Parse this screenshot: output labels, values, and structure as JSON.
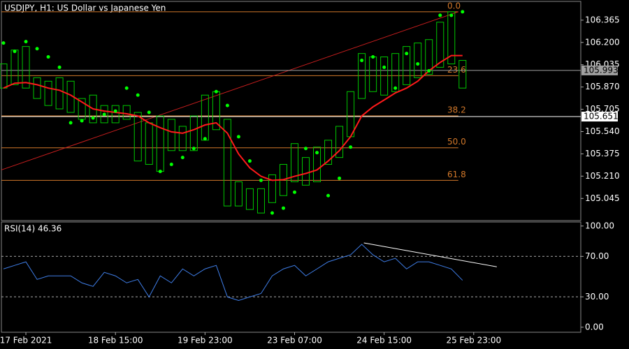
{
  "chart_data": [
    {
      "type": "ohlc",
      "title": "USDJPY, H1:  US Dollar vs Japanese Yen",
      "x": [
        -8,
        -4,
        0,
        4,
        8,
        12,
        16,
        20,
        24,
        28,
        32,
        36,
        40,
        44,
        48,
        52,
        56,
        60,
        64,
        68,
        72,
        76,
        80,
        84,
        88,
        92,
        96,
        100,
        104,
        108,
        112,
        116,
        120,
        124,
        128,
        132,
        136,
        140,
        144,
        148,
        152,
        156
      ],
      "high": [
        106.041,
        106.144,
        106.17,
        105.939,
        105.913,
        105.939,
        105.913,
        105.785,
        105.81,
        105.733,
        105.733,
        105.733,
        105.682,
        105.605,
        105.656,
        105.631,
        105.579,
        105.656,
        105.81,
        105.836,
        105.631,
        105.168,
        105.117,
        105.117,
        105.22,
        105.297,
        105.451,
        105.348,
        105.425,
        105.476,
        105.579,
        105.836,
        106.118,
        106.093,
        106.093,
        106.118,
        106.17,
        106.196,
        106.221,
        106.35,
        106.427,
        106.067
      ],
      "low": [
        105.862,
        105.887,
        105.862,
        105.785,
        105.733,
        105.708,
        105.682,
        105.631,
        105.605,
        105.605,
        105.605,
        105.631,
        105.322,
        105.297,
        105.245,
        105.399,
        105.399,
        105.399,
        105.476,
        105.554,
        104.989,
        104.989,
        104.963,
        104.937,
        105.014,
        105.066,
        105.168,
        105.143,
        105.168,
        105.297,
        105.348,
        105.502,
        105.785,
        105.836,
        105.81,
        105.836,
        105.887,
        105.939,
        105.964,
        106.016,
        106.041,
        105.862
      ],
      "ma": [
        105.862,
        105.898,
        105.903,
        105.887,
        105.862,
        105.846,
        105.81,
        105.759,
        105.708,
        105.692,
        105.682,
        105.672,
        105.656,
        105.605,
        105.569,
        105.538,
        105.528,
        105.554,
        105.589,
        105.605,
        105.528,
        105.374,
        105.271,
        105.209,
        105.179,
        105.184,
        105.209,
        105.23,
        105.256,
        105.322,
        105.399,
        105.502,
        105.656,
        105.723,
        105.774,
        105.826,
        105.862,
        105.913,
        105.99,
        106.052,
        106.103,
        106.103
      ],
      "sar": [
        106.196,
        106.134,
        106.206,
        106.154,
        106.093,
        106.016,
        105.605,
        105.62,
        105.641,
        105.667,
        105.692,
        105.862,
        105.81,
        105.682,
        105.245,
        105.297,
        105.348,
        105.415,
        105.487,
        105.836,
        105.733,
        105.502,
        105.322,
        105.179,
        104.937,
        104.973,
        105.091,
        105.415,
        105.384,
        105.066,
        105.194,
        105.425,
        106.067,
        106.093,
        106.016,
        105.862,
        106.118,
        106.041,
        105.99,
        106.401,
        106.401,
        106.427
      ],
      "bar_color": "#00c800",
      "ma_color": "#ff1a1a",
      "sar_color": "#00ff00",
      "fib_color": "#d2782a",
      "fib_levels": [
        {
          "value": 106.427,
          "label": "0.0"
        },
        {
          "value": 105.954,
          "label": "23.6"
        },
        {
          "value": 105.656,
          "label": "38.2"
        },
        {
          "value": 105.42,
          "label": "50.0"
        },
        {
          "value": 105.179,
          "label": "61.8"
        }
      ],
      "trendline": {
        "x": [
          -8.75,
          154.5
        ],
        "y": [
          105.256,
          106.427
        ],
        "color": "#c81e1e"
      },
      "price_lines": [
        {
          "value": 105.993,
          "color": "#a0a0a0"
        },
        {
          "value": 105.651,
          "color": "#ffffff"
        }
      ],
      "xlim": [
        -8.75,
        198.25
      ],
      "ylim": [
        104.881,
        106.504
      ],
      "yticks": [
        106.365,
        {
          "value": 106.2,
          "label": "106.200"
        },
        106.035,
        {
          "value": 105.87,
          "label": "105.870"
        },
        105.705,
        {
          "value": 105.54,
          "label": "105.540"
        },
        105.375,
        {
          "value": 105.21,
          "label": "105.210"
        },
        105.045
      ]
    },
    {
      "type": "line",
      "title": "RSI(14) 46.36",
      "x": [
        -8,
        -4,
        0,
        4,
        8,
        12,
        16,
        20,
        24,
        28,
        32,
        36,
        40,
        44,
        48,
        52,
        56,
        60,
        64,
        68,
        72,
        76,
        80,
        84,
        88,
        92,
        96,
        100,
        104,
        108,
        112,
        116,
        120,
        124,
        128,
        132,
        136,
        140,
        144,
        148,
        152,
        156
      ],
      "values": [
        57.6,
        61.1,
        64.6,
        47.2,
        50.7,
        50.7,
        50.7,
        43.8,
        40.3,
        54.2,
        50.7,
        43.8,
        47.2,
        29.9,
        50.7,
        43.8,
        57.6,
        50.7,
        57.6,
        61.1,
        29.9,
        26.4,
        29.9,
        33.3,
        50.7,
        57.6,
        61.1,
        50.7,
        57.6,
        64.6,
        68.1,
        71.5,
        81.9,
        71.5,
        64.6,
        68.1,
        57.6,
        64.6,
        64.6,
        61.1,
        57.6,
        46.36
      ],
      "color": "#3f7ee8",
      "levels": [
        70,
        30
      ],
      "trendline": {
        "x": [
          120.75,
          168.25
        ],
        "y": [
          83.3,
          59.7
        ],
        "color": "#ffffff"
      },
      "xlim": [
        -8.75,
        198.25
      ],
      "ylim": [
        -5,
        104
      ],
      "yticks": [
        {
          "value": 100,
          "label": "100.00"
        },
        {
          "value": 70,
          "label": "70.00"
        },
        {
          "value": 30,
          "label": "30.00"
        },
        {
          "value": 0,
          "label": "0.00"
        }
      ],
      "xticks": [
        {
          "value": 0,
          "label": "17 Feb 2021"
        },
        {
          "value": 32,
          "label": "18 Feb 15:00"
        },
        {
          "value": 64,
          "label": "19 Feb 23:00"
        },
        {
          "value": 96,
          "label": "23 Feb 07:00"
        },
        {
          "value": 128,
          "label": "24 Feb 15:00"
        },
        {
          "value": 160,
          "label": "25 Feb 23:00"
        }
      ]
    }
  ]
}
